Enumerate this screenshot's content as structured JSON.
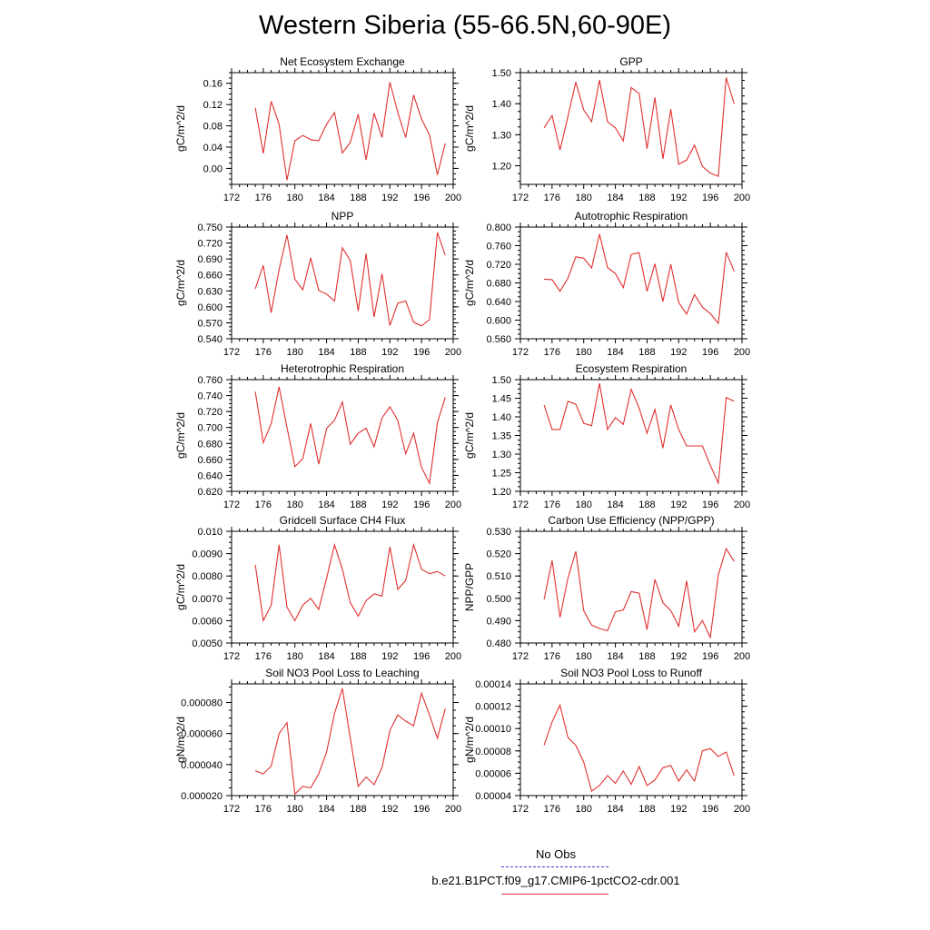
{
  "title": "Western Siberia (55-66.5N,60-90E)",
  "legend": {
    "obs_label": "No Obs",
    "obs_color": "#3a3ad0",
    "case_label": "b.e21.B1PCT.f09_g17.CMIP6-1pctCO2-cdr.001",
    "case_color": "#e03030"
  },
  "chart_data": [
    {
      "type": "line",
      "title": "Net Ecosystem Exchange",
      "ylabel": "gC/m^2/d",
      "xlim": [
        172,
        200
      ],
      "ylim": [
        -0.03,
        0.18
      ],
      "xticks": [
        172,
        176,
        180,
        184,
        188,
        192,
        196,
        200
      ],
      "yticks": [
        0.0,
        0.04,
        0.08,
        0.12,
        0.16
      ],
      "ytick_labels": [
        "0.00",
        "0.04",
        "0.08",
        "0.12",
        "0.16"
      ],
      "x": [
        175,
        176,
        177,
        178,
        179,
        180,
        181,
        182,
        183,
        184,
        185,
        186,
        187,
        188,
        189,
        190,
        191,
        192,
        193,
        194,
        195,
        196,
        197,
        198,
        199
      ],
      "series": [
        {
          "values": [
            0.114,
            0.028,
            0.126,
            0.083,
            -0.022,
            0.052,
            0.062,
            0.054,
            0.052,
            0.083,
            0.105,
            0.029,
            0.049,
            0.102,
            0.016,
            0.104,
            0.058,
            0.162,
            0.105,
            0.058,
            0.138,
            0.093,
            0.063,
            -0.012,
            0.047
          ]
        }
      ]
    },
    {
      "type": "line",
      "title": "GPP",
      "ylabel": "gC/m^2/d",
      "xlim": [
        172,
        200
      ],
      "ylim": [
        1.14,
        1.5
      ],
      "xticks": [
        172,
        176,
        180,
        184,
        188,
        192,
        196,
        200
      ],
      "yticks": [
        1.2,
        1.3,
        1.4,
        1.5
      ],
      "ytick_labels": [
        "1.20",
        "1.30",
        "1.40",
        "1.50"
      ],
      "x": [
        175,
        176,
        177,
        178,
        179,
        180,
        181,
        182,
        183,
        184,
        185,
        186,
        187,
        188,
        189,
        190,
        191,
        192,
        193,
        194,
        195,
        196,
        197,
        198,
        199
      ],
      "series": [
        {
          "values": [
            1.322,
            1.362,
            1.251,
            1.358,
            1.47,
            1.38,
            1.342,
            1.476,
            1.342,
            1.322,
            1.28,
            1.452,
            1.433,
            1.255,
            1.42,
            1.222,
            1.382,
            1.205,
            1.218,
            1.266,
            1.198,
            1.176,
            1.166,
            1.484,
            1.4
          ]
        }
      ]
    },
    {
      "type": "line",
      "title": "NPP",
      "ylabel": "gC/m^2/d",
      "xlim": [
        172,
        200
      ],
      "ylim": [
        0.54,
        0.75
      ],
      "xticks": [
        172,
        176,
        180,
        184,
        188,
        192,
        196,
        200
      ],
      "yticks": [
        0.54,
        0.57,
        0.6,
        0.63,
        0.66,
        0.69,
        0.72,
        0.75
      ],
      "ytick_labels": [
        "0.540",
        "0.570",
        "0.600",
        "0.630",
        "0.660",
        "0.690",
        "0.720",
        "0.750"
      ],
      "x": [
        175,
        176,
        177,
        178,
        179,
        180,
        181,
        182,
        183,
        184,
        185,
        186,
        187,
        188,
        189,
        190,
        191,
        192,
        193,
        194,
        195,
        196,
        197,
        198,
        199
      ],
      "series": [
        {
          "values": [
            0.634,
            0.678,
            0.589,
            0.67,
            0.735,
            0.652,
            0.632,
            0.692,
            0.631,
            0.624,
            0.611,
            0.711,
            0.687,
            0.592,
            0.7,
            0.581,
            0.662,
            0.565,
            0.607,
            0.611,
            0.571,
            0.564,
            0.576,
            0.74,
            0.697
          ]
        }
      ]
    },
    {
      "type": "line",
      "title": "Autotrophic Respiration",
      "ylabel": "gC/m^2/d",
      "xlim": [
        172,
        200
      ],
      "ylim": [
        0.56,
        0.8
      ],
      "xticks": [
        172,
        176,
        180,
        184,
        188,
        192,
        196,
        200
      ],
      "yticks": [
        0.56,
        0.6,
        0.64,
        0.68,
        0.72,
        0.76,
        0.8
      ],
      "ytick_labels": [
        "0.560",
        "0.600",
        "0.640",
        "0.680",
        "0.720",
        "0.760",
        "0.800"
      ],
      "x": [
        175,
        176,
        177,
        178,
        179,
        180,
        181,
        182,
        183,
        184,
        185,
        186,
        187,
        188,
        189,
        190,
        191,
        192,
        193,
        194,
        195,
        196,
        197,
        198,
        199
      ],
      "series": [
        {
          "values": [
            0.688,
            0.687,
            0.662,
            0.69,
            0.736,
            0.733,
            0.712,
            0.785,
            0.713,
            0.7,
            0.67,
            0.741,
            0.745,
            0.662,
            0.721,
            0.64,
            0.72,
            0.638,
            0.613,
            0.655,
            0.628,
            0.614,
            0.593,
            0.746,
            0.705
          ]
        }
      ]
    },
    {
      "type": "line",
      "title": "Heterotrophic Respiration",
      "ylabel": "gC/m^2/d",
      "xlim": [
        172,
        200
      ],
      "ylim": [
        0.62,
        0.76
      ],
      "xticks": [
        172,
        176,
        180,
        184,
        188,
        192,
        196,
        200
      ],
      "yticks": [
        0.62,
        0.64,
        0.66,
        0.68,
        0.7,
        0.72,
        0.74,
        0.76
      ],
      "ytick_labels": [
        "0.620",
        "0.640",
        "0.660",
        "0.680",
        "0.700",
        "0.720",
        "0.740",
        "0.760"
      ],
      "x": [
        175,
        176,
        177,
        178,
        179,
        180,
        181,
        182,
        183,
        184,
        185,
        186,
        187,
        188,
        189,
        190,
        191,
        192,
        193,
        194,
        195,
        196,
        197,
        198,
        199
      ],
      "series": [
        {
          "values": [
            0.745,
            0.681,
            0.705,
            0.751,
            0.7,
            0.651,
            0.661,
            0.705,
            0.654,
            0.699,
            0.709,
            0.732,
            0.679,
            0.693,
            0.699,
            0.676,
            0.712,
            0.726,
            0.709,
            0.667,
            0.693,
            0.65,
            0.63,
            0.706,
            0.738
          ]
        }
      ]
    },
    {
      "type": "line",
      "title": "Ecosystem Respiration",
      "ylabel": "gC/m^2/d",
      "xlim": [
        172,
        200
      ],
      "ylim": [
        1.2,
        1.5
      ],
      "xticks": [
        172,
        176,
        180,
        184,
        188,
        192,
        196,
        200
      ],
      "yticks": [
        1.2,
        1.25,
        1.3,
        1.35,
        1.4,
        1.45,
        1.5
      ],
      "ytick_labels": [
        "1.20",
        "1.25",
        "1.30",
        "1.35",
        "1.40",
        "1.45",
        "1.50"
      ],
      "x": [
        175,
        176,
        177,
        178,
        179,
        180,
        181,
        182,
        183,
        184,
        185,
        186,
        187,
        188,
        189,
        190,
        191,
        192,
        193,
        194,
        195,
        196,
        197,
        198,
        199
      ],
      "series": [
        {
          "values": [
            1.432,
            1.366,
            1.366,
            1.442,
            1.434,
            1.383,
            1.376,
            1.49,
            1.366,
            1.398,
            1.38,
            1.474,
            1.424,
            1.356,
            1.42,
            1.316,
            1.432,
            1.366,
            1.322,
            1.322,
            1.322,
            1.27,
            1.222,
            1.452,
            1.442
          ]
        }
      ]
    },
    {
      "type": "line",
      "title": "Gridcell Surface CH4 Flux",
      "ylabel": "gC/m^2/d",
      "xlim": [
        172,
        200
      ],
      "ylim": [
        0.005,
        0.01
      ],
      "xticks": [
        172,
        176,
        180,
        184,
        188,
        192,
        196,
        200
      ],
      "yticks": [
        0.005,
        0.006,
        0.007,
        0.008,
        0.009,
        0.01
      ],
      "ytick_labels": [
        "0.0050",
        "0.0060",
        "0.0070",
        "0.0080",
        "0.0090",
        "0.010"
      ],
      "x": [
        175,
        176,
        177,
        178,
        179,
        180,
        181,
        182,
        183,
        184,
        185,
        186,
        187,
        188,
        189,
        190,
        191,
        192,
        193,
        194,
        195,
        196,
        197,
        198,
        199
      ],
      "series": [
        {
          "values": [
            0.0085,
            0.006,
            0.0067,
            0.0094,
            0.0066,
            0.006,
            0.0067,
            0.007,
            0.0065,
            0.0079,
            0.0094,
            0.0083,
            0.0068,
            0.0062,
            0.0069,
            0.0072,
            0.0071,
            0.0093,
            0.0074,
            0.0078,
            0.0094,
            0.0083,
            0.0081,
            0.0082,
            0.008
          ]
        }
      ]
    },
    {
      "type": "line",
      "title": "Carbon Use Efficiency (NPP/GPP)",
      "ylabel": "NPP/GPP",
      "xlim": [
        172,
        200
      ],
      "ylim": [
        0.48,
        0.53
      ],
      "xticks": [
        172,
        176,
        180,
        184,
        188,
        192,
        196,
        200
      ],
      "yticks": [
        0.48,
        0.49,
        0.5,
        0.51,
        0.52,
        0.53
      ],
      "ytick_labels": [
        "0.480",
        "0.490",
        "0.500",
        "0.510",
        "0.520",
        "0.530"
      ],
      "x": [
        175,
        176,
        177,
        178,
        179,
        180,
        181,
        182,
        183,
        184,
        185,
        186,
        187,
        188,
        189,
        190,
        191,
        192,
        193,
        194,
        195,
        196,
        197,
        198,
        199
      ],
      "series": [
        {
          "values": [
            0.4995,
            0.517,
            0.4915,
            0.509,
            0.521,
            0.4945,
            0.488,
            0.4865,
            0.4855,
            0.494,
            0.4948,
            0.503,
            0.5023,
            0.486,
            0.5085,
            0.498,
            0.4945,
            0.4875,
            0.5078,
            0.485,
            0.49,
            0.4825,
            0.5105,
            0.5222,
            0.5165
          ]
        }
      ]
    },
    {
      "type": "line",
      "title": "Soil NO3 Pool Loss to Leaching",
      "ylabel": "gN/m^2/d",
      "xlim": [
        172,
        200
      ],
      "ylim": [
        2e-05,
        9.2e-05
      ],
      "xticks": [
        172,
        176,
        180,
        184,
        188,
        192,
        196,
        200
      ],
      "yticks": [
        2e-05,
        4e-05,
        6e-05,
        8e-05
      ],
      "ytick_labels": [
        "0.000020",
        "0.000040",
        "0.000060",
        "0.000080"
      ],
      "x": [
        175,
        176,
        177,
        178,
        179,
        180,
        181,
        182,
        183,
        184,
        185,
        186,
        187,
        188,
        189,
        190,
        191,
        192,
        193,
        194,
        195,
        196,
        197,
        198,
        199
      ],
      "series": [
        {
          "values": [
            3.6e-05,
            3.4e-05,
            3.9e-05,
            6e-05,
            6.7e-05,
            2.1e-05,
            2.6e-05,
            2.5e-05,
            3.4e-05,
            4.8e-05,
            7.3e-05,
            8.9e-05,
            5.7e-05,
            2.6e-05,
            3.2e-05,
            2.7e-05,
            3.8e-05,
            6.2e-05,
            7.2e-05,
            6.8e-05,
            6.5e-05,
            8.6e-05,
            7.2e-05,
            5.7e-05,
            7.6e-05
          ]
        }
      ]
    },
    {
      "type": "line",
      "title": "Soil NO3 Pool Loss to Runoff",
      "ylabel": "gN/m^2/d",
      "xlim": [
        172,
        200
      ],
      "ylim": [
        4e-05,
        0.00014
      ],
      "xticks": [
        172,
        176,
        180,
        184,
        188,
        192,
        196,
        200
      ],
      "yticks": [
        4e-05,
        6e-05,
        8e-05,
        0.0001,
        0.00012,
        0.00014
      ],
      "ytick_labels": [
        "0.00004",
        "0.00006",
        "0.00008",
        "0.00010",
        "0.00012",
        "0.00014"
      ],
      "x": [
        175,
        176,
        177,
        178,
        179,
        180,
        181,
        182,
        183,
        184,
        185,
        186,
        187,
        188,
        189,
        190,
        191,
        192,
        193,
        194,
        195,
        196,
        197,
        198,
        199
      ],
      "series": [
        {
          "values": [
            8.5e-05,
            0.000106,
            0.000121,
            9.2e-05,
            8.5e-05,
            7e-05,
            4.4e-05,
            4.9e-05,
            5.8e-05,
            5.1e-05,
            6.2e-05,
            5e-05,
            6.6e-05,
            4.9e-05,
            5.4e-05,
            6.5e-05,
            6.7e-05,
            5.3e-05,
            6.3e-05,
            5.3e-05,
            8e-05,
            8.2e-05,
            7.5e-05,
            7.9e-05,
            5.8e-05
          ]
        }
      ]
    }
  ]
}
